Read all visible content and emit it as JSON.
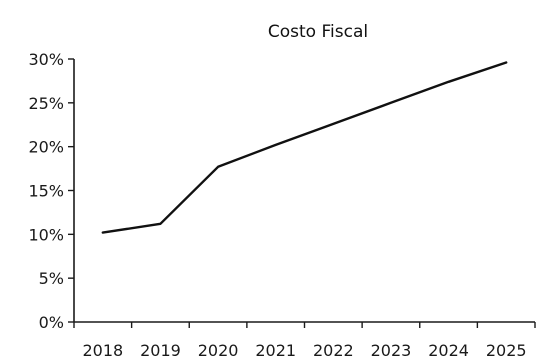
{
  "chart_data": {
    "type": "line",
    "title": "Costo Fiscal",
    "xlabel": "",
    "ylabel": "",
    "categories": [
      "2018",
      "2019",
      "2020",
      "2021",
      "2022",
      "2023",
      "2024",
      "2025"
    ],
    "series": [
      {
        "values": [
          10.2,
          11.2,
          17.7,
          20.2,
          22.6,
          25.0,
          27.4,
          29.6
        ]
      }
    ],
    "ylim": [
      0,
      30
    ],
    "yticks": [
      0,
      5,
      10,
      15,
      20,
      25,
      30
    ],
    "ytick_labels": [
      "0%",
      "5%",
      "10%",
      "15%",
      "20%",
      "25%",
      "30%"
    ],
    "grid": false,
    "legend": "none",
    "line_color": "#111111"
  }
}
